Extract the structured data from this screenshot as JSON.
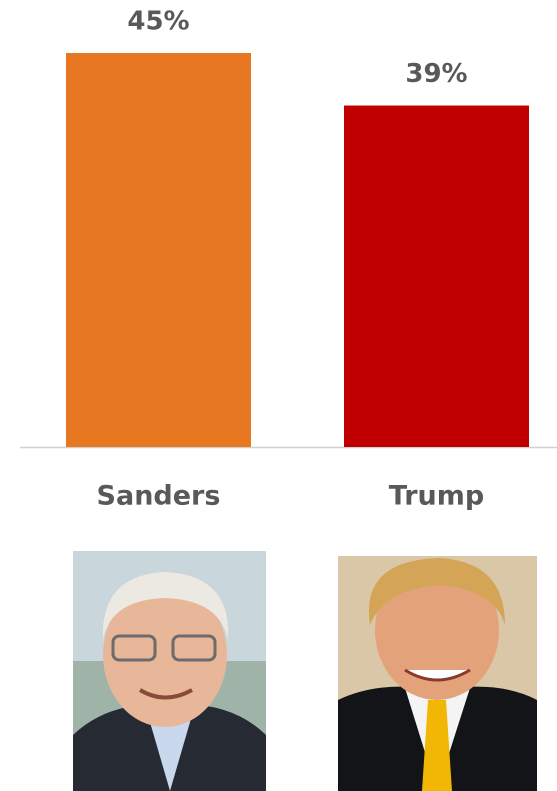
{
  "chart_data": {
    "type": "bar",
    "categories": [
      "Sanders",
      "Trump"
    ],
    "values": [
      45,
      39
    ],
    "value_labels": [
      "45%",
      "39%"
    ],
    "colors": [
      "#e87722",
      "#c00000"
    ]
  }
}
